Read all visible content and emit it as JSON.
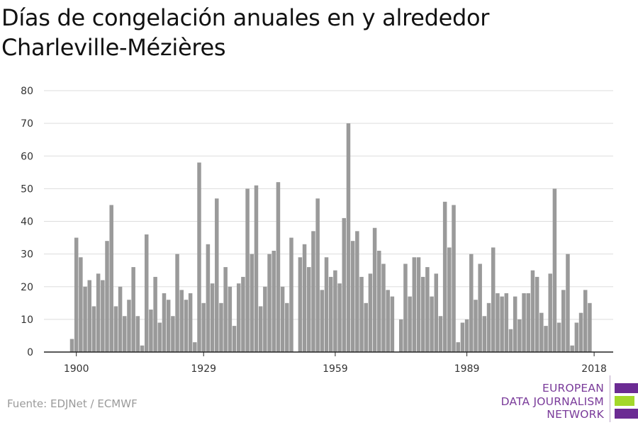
{
  "title_line1": "Días de congelación anuales en y alrededor",
  "title_line2": "Charleville-Mézières",
  "source": "Fuente: EDJNet / ECMWF",
  "logo": {
    "line1": "EUROPEAN",
    "line2": "DATA JOURNALISM",
    "line3": "NETWORK",
    "colors": {
      "purple": "#6b2b93",
      "green": "#a3d82b"
    }
  },
  "chart_data": {
    "type": "bar",
    "title": "Días de congelación anuales en y alrededor Charleville-Mézières",
    "xlabel": "",
    "ylabel": "",
    "ylim": [
      0,
      80
    ],
    "yticks": [
      0,
      10,
      20,
      30,
      40,
      50,
      60,
      70,
      80
    ],
    "xticks": [
      1900,
      1929,
      1959,
      1989,
      2018
    ],
    "grid": true,
    "bar_color": "#9a9a9a",
    "years": [
      1899,
      1900,
      1901,
      1902,
      1903,
      1904,
      1905,
      1906,
      1907,
      1908,
      1909,
      1910,
      1911,
      1912,
      1913,
      1914,
      1915,
      1916,
      1917,
      1918,
      1919,
      1920,
      1921,
      1922,
      1923,
      1924,
      1925,
      1926,
      1927,
      1928,
      1929,
      1930,
      1931,
      1932,
      1933,
      1934,
      1935,
      1936,
      1937,
      1938,
      1939,
      1940,
      1941,
      1942,
      1943,
      1944,
      1945,
      1946,
      1947,
      1948,
      1949,
      1950,
      1951,
      1952,
      1953,
      1954,
      1955,
      1956,
      1957,
      1958,
      1959,
      1960,
      1961,
      1962,
      1963,
      1964,
      1965,
      1966,
      1967,
      1968,
      1969,
      1970,
      1971,
      1972,
      1973,
      1974,
      1975,
      1976,
      1977,
      1978,
      1979,
      1980,
      1981,
      1982,
      1983,
      1984,
      1985,
      1986,
      1987,
      1988,
      1989,
      1990,
      1991,
      1992,
      1993,
      1994,
      1995,
      1996,
      1997,
      1998,
      1999,
      2000,
      2001,
      2002,
      2003,
      2004,
      2005,
      2006,
      2007,
      2008,
      2009,
      2010,
      2011,
      2012,
      2013,
      2014,
      2015,
      2016,
      2017,
      2018
    ],
    "values": [
      4,
      35,
      29,
      20,
      22,
      14,
      24,
      22,
      34,
      45,
      14,
      20,
      11,
      16,
      26,
      11,
      2,
      36,
      13,
      23,
      9,
      18,
      16,
      11,
      30,
      19,
      16,
      18,
      3,
      58,
      15,
      33,
      21,
      47,
      15,
      26,
      20,
      8,
      21,
      23,
      50,
      30,
      51,
      14,
      20,
      30,
      31,
      52,
      20,
      15,
      35,
      0,
      29,
      33,
      26,
      37,
      47,
      19,
      29,
      23,
      25,
      21,
      41,
      70,
      34,
      37,
      23,
      15,
      24,
      38,
      31,
      27,
      19,
      17,
      0,
      10,
      27,
      17,
      29,
      29,
      23,
      26,
      17,
      24,
      11,
      46,
      32,
      45,
      3,
      9,
      10,
      30,
      16,
      27,
      11,
      15,
      32,
      18,
      17,
      18,
      7,
      17,
      10,
      18,
      18,
      25,
      23,
      12,
      8,
      24,
      50,
      9,
      19,
      30,
      2,
      9,
      12,
      19,
      15,
      0
    ]
  }
}
